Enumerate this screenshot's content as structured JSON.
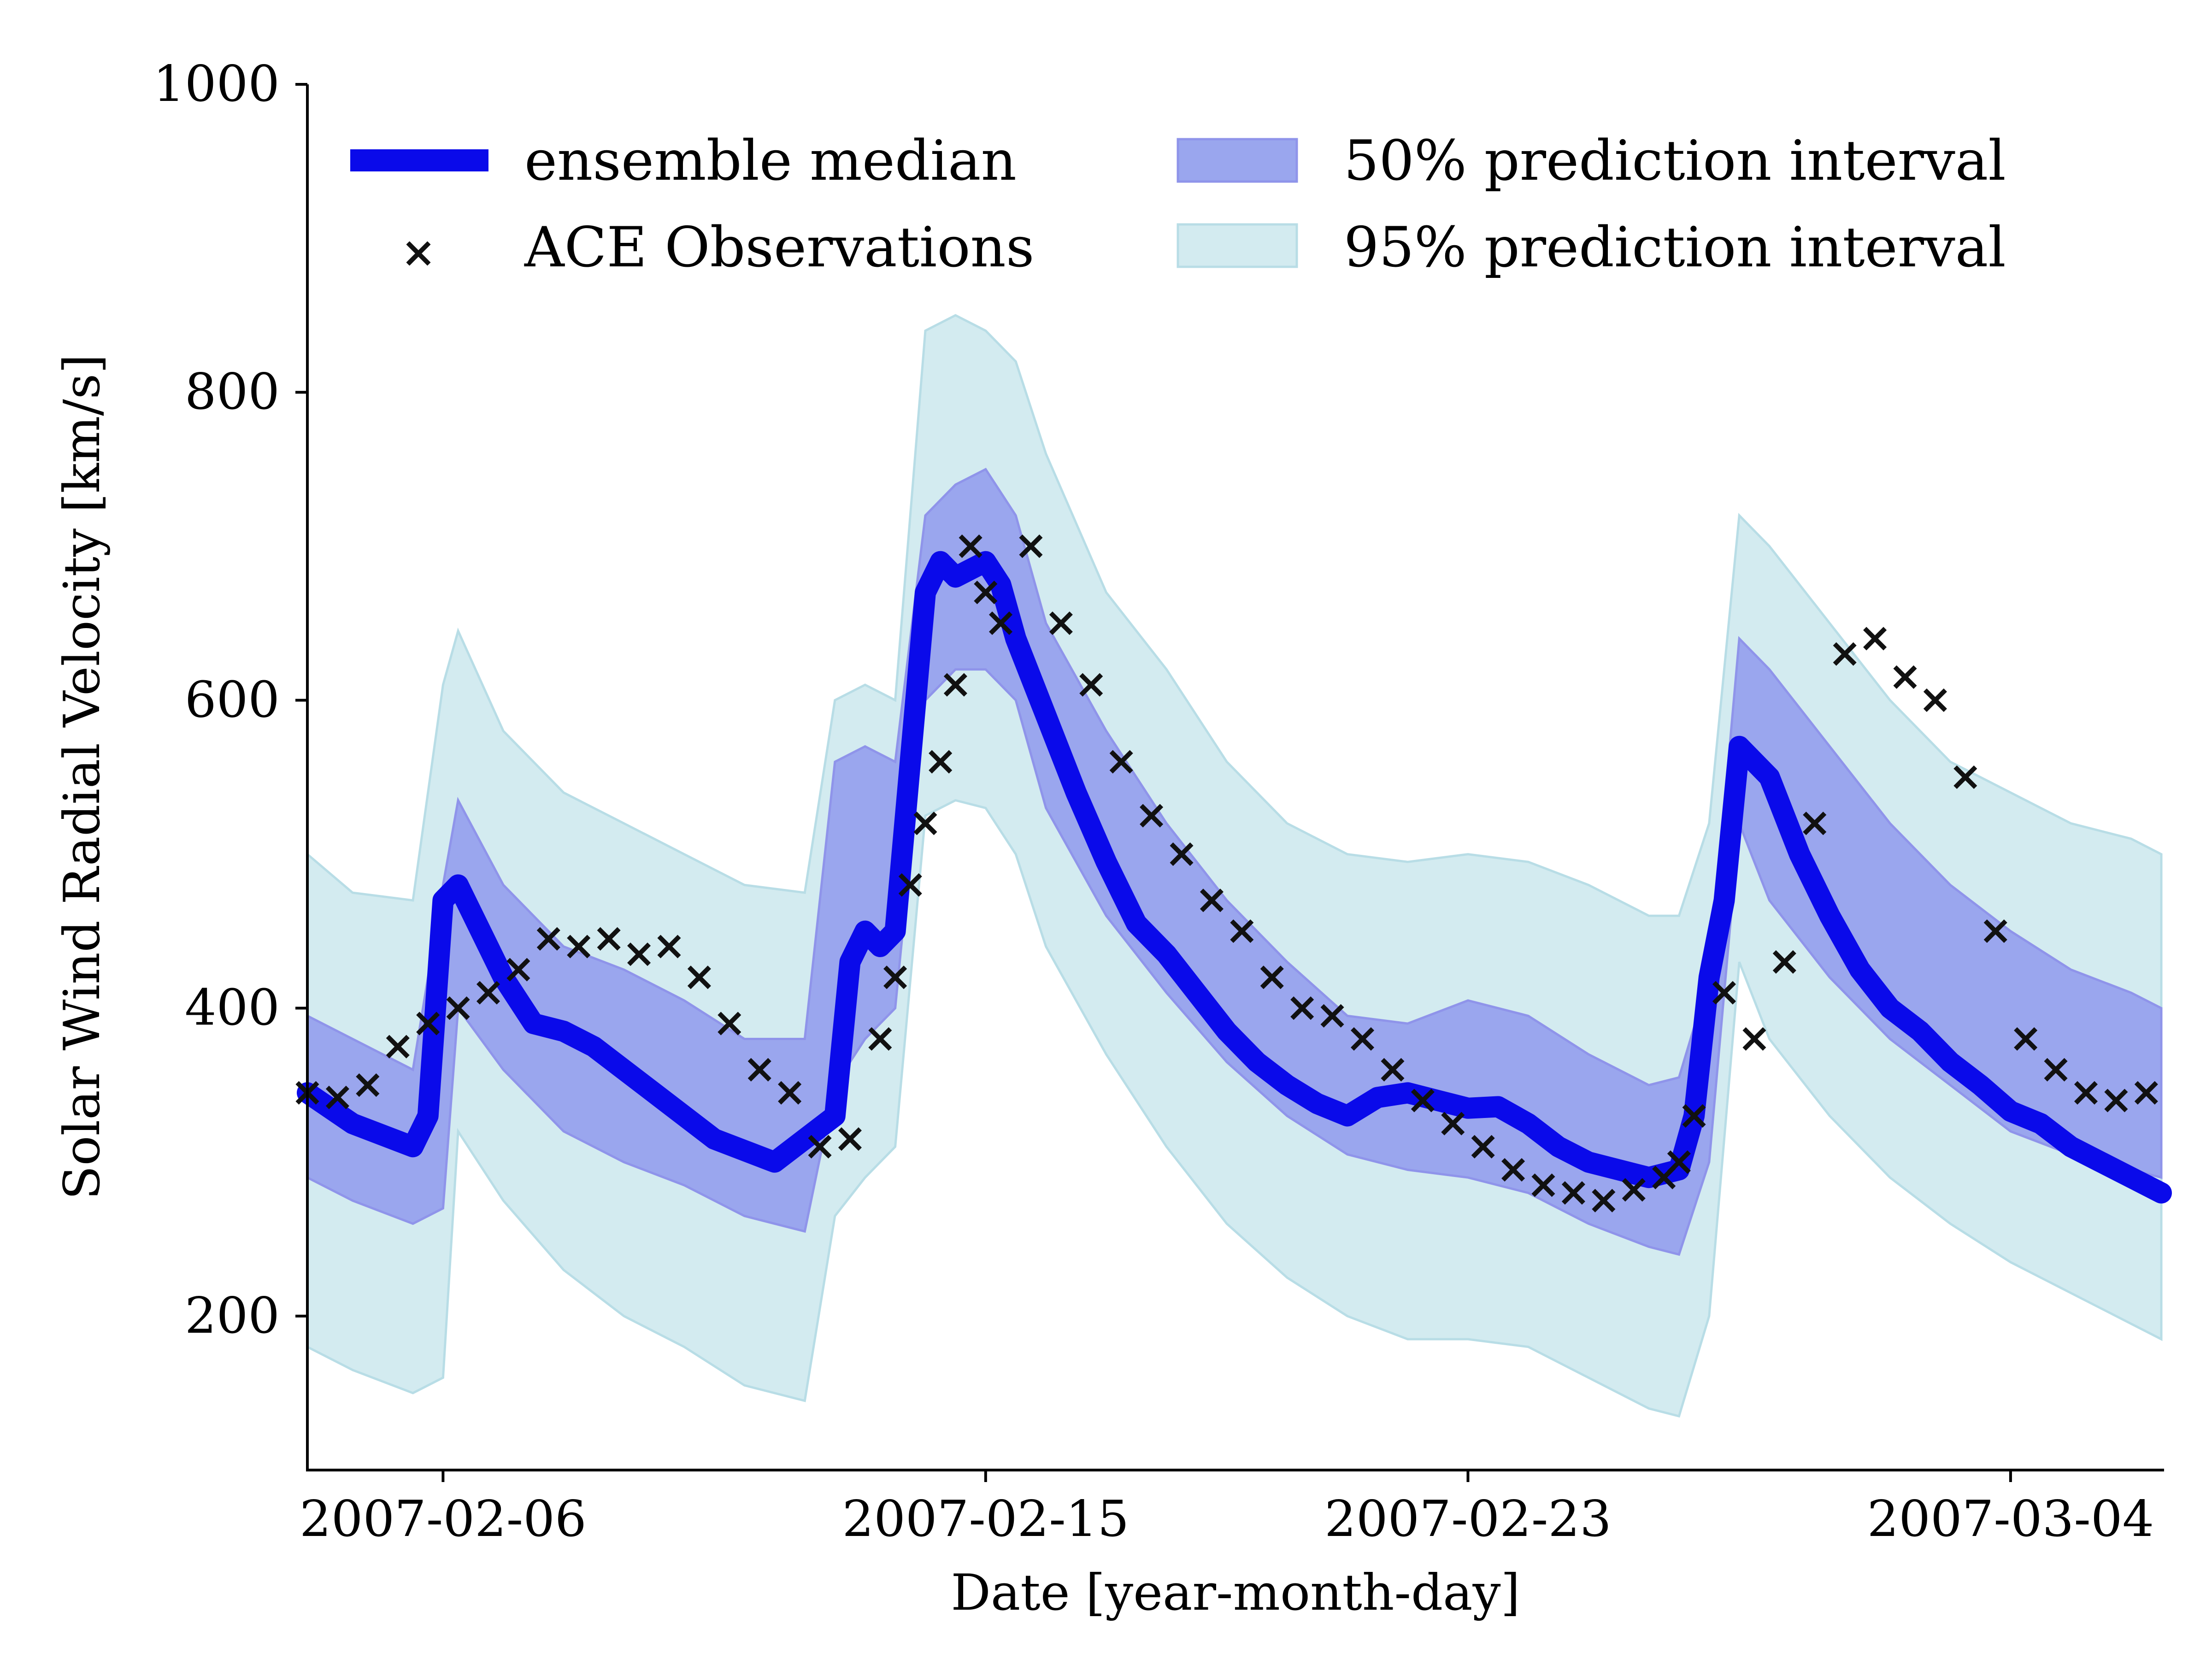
{
  "chart_data": {
    "type": "line",
    "xlabel": "Date [year-month-day]",
    "ylabel": "Solar Wind Radial Velocity [km/s]",
    "xlim": [
      "2007-02-03 18:00",
      "2007-03-06 12:00"
    ],
    "ylim": [
      100,
      1000
    ],
    "x_ticks": [
      "2007-02-06",
      "2007-02-15",
      "2007-02-23",
      "2007-03-04"
    ],
    "y_ticks": [
      200,
      400,
      600,
      800,
      1000
    ],
    "grid": false,
    "legend_position": "top",
    "legend": {
      "median": "ensemble median",
      "observations": "ACE Observations",
      "pi50": "50% prediction interval",
      "pi95": "95% prediction interval"
    },
    "colors": {
      "median": "#0a0aea",
      "observations": "#111111",
      "pi50_fill": "#9aa6ee",
      "pi50_edge": "#8f94ea",
      "pi95_fill": "#d3ebf0",
      "pi95_edge": "#b8dde6"
    },
    "series": [
      {
        "name": "ensemble median",
        "x": [
          "2007-02-03 18:00",
          "2007-02-04 12:00",
          "2007-02-05 12:00",
          "2007-02-05 18:00",
          "2007-02-06 00:00",
          "2007-02-06 06:00",
          "2007-02-06 12:00",
          "2007-02-07 00:00",
          "2007-02-07 12:00",
          "2007-02-08 00:00",
          "2007-02-08 12:00",
          "2007-02-09 12:00",
          "2007-02-10 12:00",
          "2007-02-11 12:00",
          "2007-02-12 12:00",
          "2007-02-12 18:00",
          "2007-02-13 00:00",
          "2007-02-13 06:00",
          "2007-02-13 12:00",
          "2007-02-14 00:00",
          "2007-02-14 06:00",
          "2007-02-14 12:00",
          "2007-02-15 00:00",
          "2007-02-15 06:00",
          "2007-02-15 12:00",
          "2007-02-16 00:00",
          "2007-02-16 12:00",
          "2007-02-17 00:00",
          "2007-02-17 12:00",
          "2007-02-18 00:00",
          "2007-02-18 12:00",
          "2007-02-19 00:00",
          "2007-02-19 12:00",
          "2007-02-20 00:00",
          "2007-02-20 12:00",
          "2007-02-21 00:00",
          "2007-02-21 12:00",
          "2007-02-22 00:00",
          "2007-02-22 12:00",
          "2007-02-23 00:00",
          "2007-02-23 12:00",
          "2007-02-24 00:00",
          "2007-02-24 12:00",
          "2007-02-25 00:00",
          "2007-02-25 12:00",
          "2007-02-26 00:00",
          "2007-02-26 12:00",
          "2007-02-26 18:00",
          "2007-02-27 00:00",
          "2007-02-27 06:00",
          "2007-02-27 12:00",
          "2007-02-28 00:00",
          "2007-02-28 12:00",
          "2007-03-01 00:00",
          "2007-03-01 12:00",
          "2007-03-02 00:00",
          "2007-03-02 12:00",
          "2007-03-03 00:00",
          "2007-03-03 12:00",
          "2007-03-04 00:00",
          "2007-03-04 12:00",
          "2007-03-05 00:00",
          "2007-03-05 12:00",
          "2007-03-06 00:00",
          "2007-03-06 12:00"
        ],
        "y": [
          345,
          325,
          310,
          330,
          470,
          480,
          460,
          420,
          390,
          385,
          375,
          345,
          315,
          300,
          330,
          430,
          450,
          440,
          450,
          670,
          690,
          680,
          690,
          675,
          640,
          590,
          540,
          495,
          455,
          435,
          410,
          385,
          365,
          350,
          338,
          330,
          342,
          345,
          340,
          335,
          336,
          325,
          310,
          300,
          295,
          290,
          295,
          330,
          420,
          470,
          570,
          550,
          500,
          460,
          425,
          400,
          385,
          365,
          350,
          333,
          325,
          310,
          300,
          290,
          280
        ]
      },
      {
        "name": "50% prediction interval",
        "x": [
          "2007-02-03 18:00",
          "2007-02-04 12:00",
          "2007-02-05 12:00",
          "2007-02-06 00:00",
          "2007-02-06 06:00",
          "2007-02-07 00:00",
          "2007-02-08 00:00",
          "2007-02-09 00:00",
          "2007-02-10 00:00",
          "2007-02-11 00:00",
          "2007-02-12 00:00",
          "2007-02-12 12:00",
          "2007-02-13 00:00",
          "2007-02-13 12:00",
          "2007-02-14 00:00",
          "2007-02-14 12:00",
          "2007-02-15 00:00",
          "2007-02-15 12:00",
          "2007-02-16 00:00",
          "2007-02-17 00:00",
          "2007-02-18 00:00",
          "2007-02-19 00:00",
          "2007-02-20 00:00",
          "2007-02-21 00:00",
          "2007-02-22 00:00",
          "2007-02-23 00:00",
          "2007-02-24 00:00",
          "2007-02-25 00:00",
          "2007-02-26 00:00",
          "2007-02-26 12:00",
          "2007-02-27 00:00",
          "2007-02-27 12:00",
          "2007-02-28 00:00",
          "2007-03-01 00:00",
          "2007-03-02 00:00",
          "2007-03-03 00:00",
          "2007-03-04 00:00",
          "2007-03-05 00:00",
          "2007-03-06 00:00",
          "2007-03-06 12:00"
        ],
        "lower": [
          290,
          275,
          260,
          270,
          400,
          360,
          320,
          300,
          285,
          265,
          255,
          350,
          380,
          400,
          600,
          620,
          620,
          600,
          530,
          460,
          410,
          365,
          330,
          305,
          295,
          290,
          280,
          260,
          245,
          240,
          300,
          520,
          470,
          420,
          380,
          350,
          320,
          305,
          295,
          290
        ],
        "upper": [
          395,
          380,
          360,
          480,
          535,
          480,
          440,
          425,
          405,
          380,
          380,
          560,
          570,
          560,
          720,
          740,
          750,
          720,
          650,
          580,
          520,
          470,
          430,
          395,
          390,
          405,
          395,
          370,
          350,
          355,
          420,
          640,
          620,
          570,
          520,
          480,
          450,
          425,
          410,
          400
        ]
      },
      {
        "name": "95% prediction interval",
        "x": [
          "2007-02-03 18:00",
          "2007-02-04 12:00",
          "2007-02-05 12:00",
          "2007-02-06 00:00",
          "2007-02-06 06:00",
          "2007-02-07 00:00",
          "2007-02-08 00:00",
          "2007-02-09 00:00",
          "2007-02-10 00:00",
          "2007-02-11 00:00",
          "2007-02-12 00:00",
          "2007-02-12 12:00",
          "2007-02-13 00:00",
          "2007-02-13 12:00",
          "2007-02-14 00:00",
          "2007-02-14 12:00",
          "2007-02-15 00:00",
          "2007-02-15 12:00",
          "2007-02-16 00:00",
          "2007-02-17 00:00",
          "2007-02-18 00:00",
          "2007-02-19 00:00",
          "2007-02-20 00:00",
          "2007-02-21 00:00",
          "2007-02-22 00:00",
          "2007-02-23 00:00",
          "2007-02-24 00:00",
          "2007-02-25 00:00",
          "2007-02-26 00:00",
          "2007-02-26 12:00",
          "2007-02-27 00:00",
          "2007-02-27 12:00",
          "2007-02-28 00:00",
          "2007-03-01 00:00",
          "2007-03-02 00:00",
          "2007-03-03 00:00",
          "2007-03-04 00:00",
          "2007-03-05 00:00",
          "2007-03-06 00:00",
          "2007-03-06 12:00"
        ],
        "lower": [
          180,
          165,
          150,
          160,
          320,
          275,
          230,
          200,
          180,
          155,
          145,
          265,
          290,
          310,
          525,
          535,
          530,
          500,
          440,
          370,
          310,
          260,
          225,
          200,
          185,
          185,
          180,
          160,
          140,
          135,
          200,
          430,
          380,
          330,
          290,
          260,
          235,
          215,
          195,
          185
        ],
        "upper": [
          500,
          475,
          470,
          610,
          645,
          580,
          540,
          520,
          500,
          480,
          475,
          600,
          610,
          600,
          840,
          850,
          840,
          820,
          760,
          670,
          620,
          560,
          520,
          500,
          495,
          500,
          495,
          480,
          460,
          460,
          520,
          720,
          700,
          650,
          600,
          560,
          540,
          520,
          510,
          500
        ]
      },
      {
        "name": "ACE Observations",
        "x": [
          "2007-02-03 18:00",
          "2007-02-04 06:00",
          "2007-02-04 18:00",
          "2007-02-05 06:00",
          "2007-02-05 18:00",
          "2007-02-06 06:00",
          "2007-02-06 18:00",
          "2007-02-07 06:00",
          "2007-02-07 18:00",
          "2007-02-08 06:00",
          "2007-02-08 18:00",
          "2007-02-09 06:00",
          "2007-02-09 18:00",
          "2007-02-10 06:00",
          "2007-02-10 18:00",
          "2007-02-11 06:00",
          "2007-02-11 18:00",
          "2007-02-12 06:00",
          "2007-02-12 18:00",
          "2007-02-13 06:00",
          "2007-02-13 12:00",
          "2007-02-13 18:00",
          "2007-02-14 00:00",
          "2007-02-14 06:00",
          "2007-02-14 12:00",
          "2007-02-14 18:00",
          "2007-02-15 00:00",
          "2007-02-15 06:00",
          "2007-02-15 18:00",
          "2007-02-16 06:00",
          "2007-02-16 18:00",
          "2007-02-17 06:00",
          "2007-02-17 18:00",
          "2007-02-18 06:00",
          "2007-02-18 18:00",
          "2007-02-19 06:00",
          "2007-02-19 18:00",
          "2007-02-20 06:00",
          "2007-02-20 18:00",
          "2007-02-21 06:00",
          "2007-02-21 18:00",
          "2007-02-22 06:00",
          "2007-02-22 18:00",
          "2007-02-23 06:00",
          "2007-02-23 18:00",
          "2007-02-24 06:00",
          "2007-02-24 18:00",
          "2007-02-25 06:00",
          "2007-02-25 18:00",
          "2007-02-26 06:00",
          "2007-02-26 12:00",
          "2007-02-26 18:00",
          "2007-02-27 06:00",
          "2007-02-27 18:00",
          "2007-02-28 06:00",
          "2007-02-28 18:00",
          "2007-03-01 06:00",
          "2007-03-01 18:00",
          "2007-03-02 06:00",
          "2007-03-02 18:00",
          "2007-03-03 06:00",
          "2007-03-03 18:00",
          "2007-03-04 06:00",
          "2007-03-04 18:00",
          "2007-03-05 06:00",
          "2007-03-05 18:00",
          "2007-03-06 06:00"
        ],
        "y": [
          345,
          342,
          350,
          375,
          390,
          400,
          410,
          425,
          445,
          440,
          445,
          435,
          440,
          420,
          390,
          360,
          345,
          310,
          315,
          380,
          420,
          480,
          520,
          560,
          610,
          700,
          670,
          650,
          700,
          650,
          610,
          560,
          525,
          500,
          470,
          450,
          420,
          400,
          395,
          380,
          360,
          340,
          325,
          310,
          295,
          285,
          280,
          275,
          282,
          290,
          300,
          330,
          410,
          380,
          430,
          520,
          630,
          640,
          615,
          600,
          550,
          450,
          380,
          360,
          345,
          340,
          345
        ]
      }
    ]
  }
}
